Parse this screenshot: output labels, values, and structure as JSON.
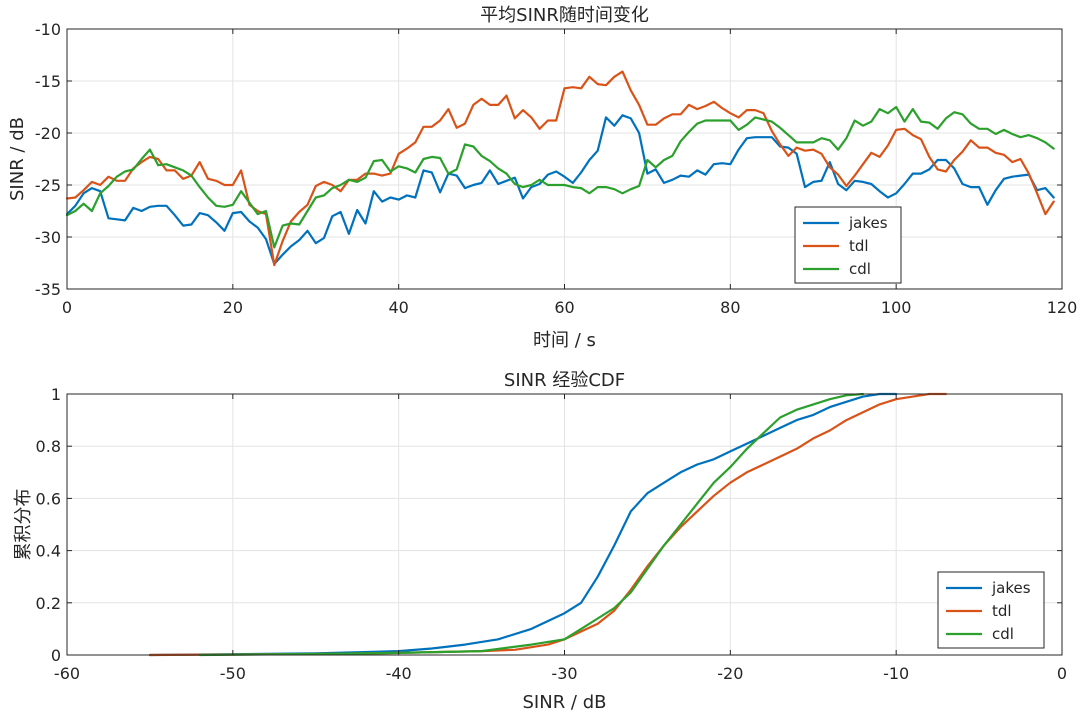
{
  "chart_data": [
    {
      "type": "line",
      "title": "平均SINR随时间变化",
      "xlabel": "时间 / s",
      "ylabel": "SINR / dB",
      "xlim": [
        0,
        120
      ],
      "ylim": [
        -35,
        -10
      ],
      "xticks": [
        0,
        20,
        40,
        60,
        80,
        100,
        120
      ],
      "yticks": [
        -35,
        -30,
        -25,
        -20,
        -15,
        -10
      ],
      "xtick_labels": [
        "0",
        "20",
        "40",
        "60",
        "80",
        "100",
        "120"
      ],
      "ytick_labels": [
        "-35",
        "-30",
        "-25",
        "-20",
        "-15",
        "-10"
      ],
      "grid": true,
      "legend_position": "lower-right",
      "x_start": 0,
      "x_step": 1,
      "series": [
        {
          "name": "jakes",
          "color": "#0072BD",
          "values": [
            -27.8,
            -27.0,
            -25.8,
            -25.3,
            -25.6,
            -28.2,
            -28.3,
            -28.4,
            -27.2,
            -27.5,
            -27.1,
            -27.0,
            -27.0,
            -27.9,
            -28.9,
            -28.8,
            -27.7,
            -27.9,
            -28.6,
            -29.4,
            -27.7,
            -27.6,
            -28.5,
            -29.1,
            -30.2,
            -32.6,
            -31.7,
            -30.9,
            -30.3,
            -29.4,
            -30.6,
            -30.1,
            -28.0,
            -27.6,
            -29.7,
            -27.4,
            -28.7,
            -25.6,
            -26.6,
            -26.2,
            -26.4,
            -26.0,
            -26.2,
            -23.6,
            -23.8,
            -25.7,
            -23.9,
            -24.1,
            -25.3,
            -25.0,
            -24.8,
            -23.6,
            -24.9,
            -24.6,
            -24.3,
            -26.3,
            -25.2,
            -24.9,
            -24.0,
            -23.7,
            -24.2,
            -24.8,
            -23.8,
            -22.6,
            -21.7,
            -18.5,
            -19.3,
            -18.3,
            -18.6,
            -20.0,
            -23.9,
            -23.5,
            -24.8,
            -24.5,
            -24.1,
            -24.2,
            -23.6,
            -24.0,
            -23.0,
            -22.9,
            -23.0,
            -21.6,
            -20.5,
            -20.4,
            -20.4,
            -20.4,
            -21.3,
            -21.4,
            -22.0,
            -25.2,
            -24.7,
            -24.6,
            -22.8,
            -24.9,
            -25.5,
            -24.6,
            -24.7,
            -24.9,
            -25.6,
            -26.2,
            -25.8,
            -24.9,
            -23.9,
            -23.9,
            -23.5,
            -22.6,
            -22.6,
            -23.4,
            -24.9,
            -25.2,
            -25.2,
            -26.9,
            -25.5,
            -24.4,
            -24.2,
            -24.1,
            -24.0,
            -25.5,
            -25.3,
            -26.2
          ]
        },
        {
          "name": "tdl",
          "color": "#D95319",
          "values": [
            -26.3,
            -26.2,
            -25.5,
            -24.7,
            -25.0,
            -24.2,
            -24.6,
            -24.6,
            -23.4,
            -22.8,
            -22.3,
            -22.5,
            -23.6,
            -23.6,
            -24.4,
            -24.1,
            -22.8,
            -24.4,
            -24.6,
            -25.0,
            -25.0,
            -23.6,
            -26.9,
            -27.5,
            -27.8,
            -32.7,
            -30.4,
            -28.5,
            -27.6,
            -26.9,
            -25.1,
            -24.7,
            -25.0,
            -25.6,
            -24.5,
            -24.5,
            -23.9,
            -23.9,
            -24.1,
            -23.9,
            -22.0,
            -21.5,
            -20.9,
            -19.4,
            -19.4,
            -18.8,
            -17.7,
            -19.5,
            -19.1,
            -17.3,
            -16.7,
            -17.3,
            -17.3,
            -16.4,
            -18.6,
            -17.8,
            -18.5,
            -19.6,
            -18.8,
            -18.8,
            -15.7,
            -15.6,
            -15.7,
            -14.6,
            -15.3,
            -15.4,
            -14.6,
            -14.1,
            -15.9,
            -17.3,
            -19.2,
            -19.2,
            -18.6,
            -18.2,
            -18.2,
            -17.3,
            -17.7,
            -17.4,
            -17.0,
            -17.6,
            -18.1,
            -18.5,
            -17.8,
            -17.8,
            -18.1,
            -19.8,
            -21.1,
            -22.2,
            -21.4,
            -21.7,
            -21.6,
            -22.0,
            -23.3,
            -24.0,
            -25.1,
            -24.1,
            -23.0,
            -21.9,
            -22.3,
            -21.2,
            -19.7,
            -19.6,
            -20.2,
            -20.6,
            -22.3,
            -23.5,
            -23.7,
            -22.6,
            -21.8,
            -20.7,
            -21.4,
            -21.4,
            -21.9,
            -22.1,
            -22.8,
            -22.5,
            -23.9,
            -25.8,
            -27.8,
            -26.6
          ]
        },
        {
          "name": "cdl",
          "color": "#2CA02C",
          "values": [
            -27.9,
            -27.5,
            -26.8,
            -27.5,
            -25.8,
            -25.1,
            -24.2,
            -23.7,
            -23.5,
            -22.5,
            -21.6,
            -23.1,
            -23.0,
            -23.3,
            -23.6,
            -24.1,
            -25.2,
            -26.2,
            -27.0,
            -27.1,
            -26.9,
            -25.6,
            -26.7,
            -27.8,
            -27.5,
            -31.0,
            -28.9,
            -28.7,
            -28.8,
            -27.5,
            -26.2,
            -26.0,
            -25.3,
            -25.0,
            -24.5,
            -24.7,
            -24.3,
            -22.7,
            -22.6,
            -23.7,
            -23.2,
            -23.4,
            -23.8,
            -22.5,
            -22.3,
            -22.4,
            -23.9,
            -23.5,
            -21.1,
            -21.3,
            -22.2,
            -22.7,
            -23.4,
            -23.9,
            -24.9,
            -25.2,
            -25.0,
            -24.5,
            -25.0,
            -25.0,
            -25.0,
            -25.2,
            -25.3,
            -25.8,
            -25.2,
            -25.2,
            -25.4,
            -25.8,
            -25.4,
            -25.1,
            -22.6,
            -23.3,
            -22.6,
            -22.2,
            -20.8,
            -19.9,
            -19.1,
            -18.8,
            -18.8,
            -18.8,
            -18.8,
            -19.7,
            -19.2,
            -18.5,
            -18.7,
            -18.9,
            -19.5,
            -20.2,
            -20.9,
            -20.9,
            -20.9,
            -20.5,
            -20.7,
            -21.6,
            -20.5,
            -18.8,
            -19.3,
            -18.9,
            -17.7,
            -18.1,
            -17.5,
            -18.9,
            -17.7,
            -18.9,
            -19.0,
            -19.6,
            -18.6,
            -18.0,
            -18.2,
            -19.1,
            -19.6,
            -19.6,
            -20.1,
            -19.7,
            -20.1,
            -20.4,
            -20.2,
            -20.5,
            -20.9,
            -21.5
          ]
        }
      ]
    },
    {
      "type": "line",
      "title": "SINR 经验CDF",
      "xlabel": "SINR / dB",
      "ylabel": "累积分布",
      "xlim": [
        -60,
        0
      ],
      "ylim": [
        0,
        1
      ],
      "xticks": [
        -60,
        -50,
        -40,
        -30,
        -20,
        -10,
        0
      ],
      "yticks": [
        0,
        0.2,
        0.4,
        0.6,
        0.8,
        1
      ],
      "xtick_labels": [
        "-60",
        "-50",
        "-40",
        "-30",
        "-20",
        "-10",
        "0"
      ],
      "ytick_labels": [
        "0",
        "0.2",
        "0.4",
        "0.6",
        "0.8",
        "1"
      ],
      "grid": true,
      "legend_position": "lower-right",
      "series": [
        {
          "name": "jakes",
          "color": "#0072BD",
          "x": [
            -55,
            -50,
            -45,
            -40,
            -38,
            -36,
            -34,
            -32,
            -30,
            -29,
            -28,
            -27,
            -26,
            -25,
            -24,
            -23,
            -22,
            -21,
            -20,
            -19,
            -18,
            -17,
            -16,
            -15,
            -14,
            -13,
            -12,
            -11,
            -10
          ],
          "y": [
            0,
            0.003,
            0.006,
            0.015,
            0.025,
            0.04,
            0.06,
            0.1,
            0.16,
            0.2,
            0.3,
            0.42,
            0.55,
            0.62,
            0.66,
            0.7,
            0.73,
            0.75,
            0.78,
            0.81,
            0.84,
            0.87,
            0.9,
            0.92,
            0.95,
            0.97,
            0.99,
            1,
            1
          ]
        },
        {
          "name": "tdl",
          "color": "#D95319",
          "x": [
            -55,
            -50,
            -45,
            -40,
            -35,
            -33,
            -31,
            -30,
            -29,
            -28,
            -27,
            -26,
            -25,
            -24,
            -23,
            -22,
            -21,
            -20,
            -19,
            -18,
            -17,
            -16,
            -15,
            -14,
            -13,
            -12,
            -11,
            -10,
            -9,
            -8,
            -7
          ],
          "y": [
            0,
            0.002,
            0.004,
            0.008,
            0.015,
            0.02,
            0.04,
            0.06,
            0.09,
            0.12,
            0.17,
            0.25,
            0.34,
            0.42,
            0.49,
            0.55,
            0.61,
            0.66,
            0.7,
            0.73,
            0.76,
            0.79,
            0.83,
            0.86,
            0.9,
            0.93,
            0.96,
            0.98,
            0.99,
            1,
            1
          ]
        },
        {
          "name": "cdl",
          "color": "#2CA02C",
          "x": [
            -52,
            -45,
            -40,
            -35,
            -32,
            -30,
            -29,
            -28,
            -27,
            -26,
            -25,
            -24,
            -23,
            -22,
            -21,
            -20,
            -19,
            -18,
            -17,
            -16,
            -15,
            -14,
            -13,
            -12
          ],
          "y": [
            0,
            0.004,
            0.008,
            0.015,
            0.04,
            0.06,
            0.1,
            0.14,
            0.18,
            0.24,
            0.33,
            0.42,
            0.5,
            0.58,
            0.66,
            0.72,
            0.79,
            0.85,
            0.91,
            0.94,
            0.96,
            0.98,
            0.995,
            1
          ]
        }
      ]
    }
  ]
}
